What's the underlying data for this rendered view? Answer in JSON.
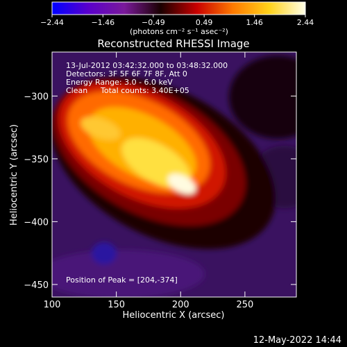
{
  "chart_data": {
    "type": "heatmap",
    "title": "Reconstructed RHESSI Image",
    "xlabel": "Heliocentric X (arcsec)",
    "ylabel": "Heliocentric Y (arcsec)",
    "xlim": [
      100,
      290
    ],
    "ylim": [
      -460,
      -265
    ],
    "x_ticks": [
      100,
      150,
      200,
      250
    ],
    "y_ticks": [
      -300,
      -350,
      -400,
      -450
    ],
    "x_tick_labels": [
      "100",
      "150",
      "200",
      "250"
    ],
    "y_tick_labels": [
      "−300",
      "−350",
      "−400",
      "−450"
    ],
    "colorbar": {
      "ticks": [
        -2.44,
        -1.46,
        -0.49,
        0.49,
        1.46,
        2.44
      ],
      "tick_labels": [
        "−2.44",
        "−1.46",
        "−0.49",
        "0.49",
        "1.46",
        "2.44"
      ],
      "units": "(photons cm⁻² s⁻¹ asec⁻²)"
    },
    "colormap": [
      "#0000ff",
      "#5a00cc",
      "#7a1a9a",
      "#1a0000",
      "#c80000",
      "#ff7a00",
      "#ffd21a",
      "#ffffe8"
    ],
    "annotations": {
      "time_range": "13-Jul-2012 03:42:32.000 to 03:48:32.000",
      "detectors": "Detectors: 3F 5F 6F 7F 8F, Att 0",
      "energy_range": "Energy Range: 3.0 - 6.0 keV",
      "algorithm": "Clean",
      "total_counts": "Total counts: 3.40E+05",
      "peak_position": "Position of Peak = [204,-374]"
    },
    "peak": {
      "x": 204,
      "y": -374
    }
  },
  "footer": {
    "timestamp": "12-May-2022 14:44"
  }
}
